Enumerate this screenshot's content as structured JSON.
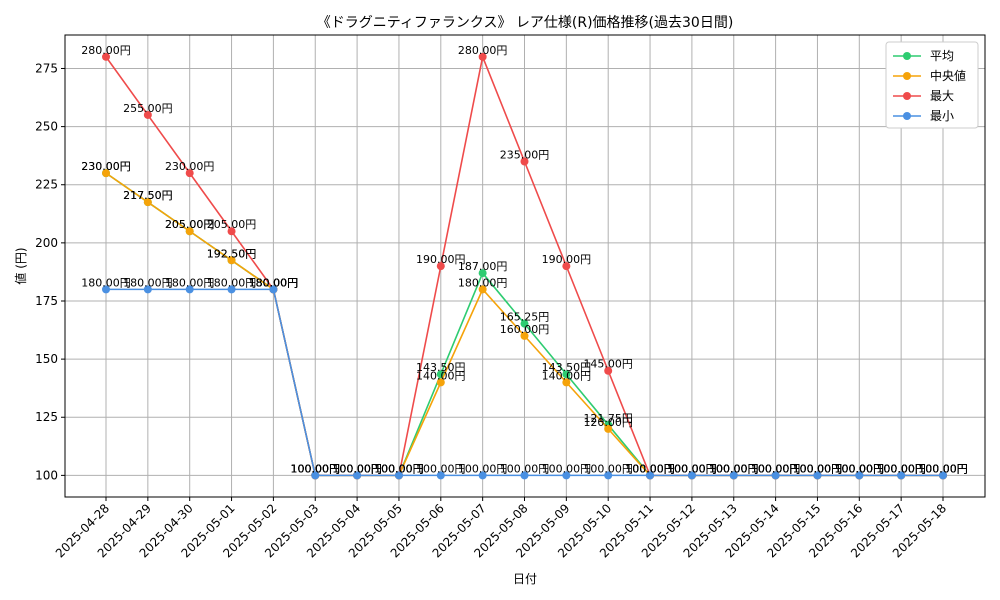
{
  "chart_data": {
    "type": "line",
    "title": "《ドラグニティファランクス》 レア仕様(R)価格推移(過去30日間)",
    "xlabel": "日付",
    "ylabel": "値 (円)",
    "ylim": [
      90.7,
      289.4
    ],
    "yticks": [
      100,
      125,
      150,
      175,
      200,
      225,
      250,
      275
    ],
    "grid": true,
    "legend_position": "top-right",
    "categories": [
      "2025-04-28",
      "2025-04-29",
      "2025-04-30",
      "2025-05-01",
      "2025-05-02",
      "2025-05-03",
      "2025-05-04",
      "2025-05-05",
      "2025-05-06",
      "2025-05-07",
      "2025-05-08",
      "2025-05-09",
      "2025-05-10",
      "2025-05-11",
      "2025-05-12",
      "2025-05-13",
      "2025-05-14",
      "2025-05-15",
      "2025-05-16",
      "2025-05-17",
      "2025-05-18"
    ],
    "series": [
      {
        "name": "平均",
        "color": "#2ecc71",
        "values": [
          230,
          217.5,
          205,
          192.5,
          180,
          100,
          100,
          100,
          143.5,
          187,
          165.25,
          143.5,
          121.75,
          100,
          100,
          100,
          100,
          100,
          100,
          100,
          100
        ]
      },
      {
        "name": "中央値",
        "color": "#f5a30a",
        "values": [
          230,
          217.5,
          205,
          192.5,
          180,
          100,
          100,
          100,
          140,
          180,
          160,
          140,
          120,
          100,
          100,
          100,
          100,
          100,
          100,
          100,
          100
        ]
      },
      {
        "name": "最大",
        "color": "#ef4b4b",
        "values": [
          280,
          255,
          230,
          205,
          180,
          100,
          100,
          100,
          190,
          280,
          235,
          190,
          145,
          100,
          100,
          100,
          100,
          100,
          100,
          100,
          100
        ]
      },
      {
        "name": "最小",
        "color": "#4a90e2",
        "values": [
          180,
          180,
          180,
          180,
          180,
          100,
          100,
          100,
          100,
          100,
          100,
          100,
          100,
          100,
          100,
          100,
          100,
          100,
          100,
          100,
          100
        ]
      }
    ],
    "value_suffix": "円"
  }
}
